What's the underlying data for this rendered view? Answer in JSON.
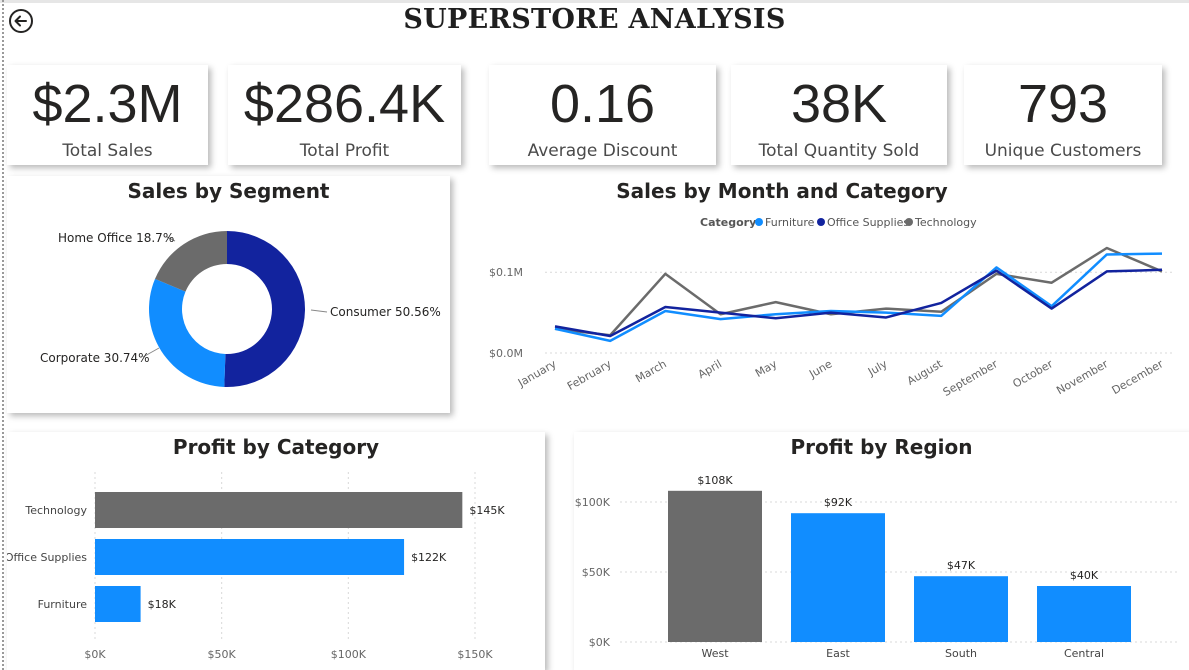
{
  "header": {
    "title": "SUPERSTORE ANALYSIS",
    "back_icon": "arrow-left-circle-icon"
  },
  "kpis": [
    {
      "value": "$2.3M",
      "label": "Total Sales"
    },
    {
      "value": "$286.4K",
      "label": "Total Profit"
    },
    {
      "value": "0.16",
      "label": "Average Discount"
    },
    {
      "value": "38K",
      "label": "Total Quantity Sold"
    },
    {
      "value": "793",
      "label": "Unique Customers"
    }
  ],
  "colors": {
    "dark_blue": "#12239E",
    "light_blue": "#118DFF",
    "gray": "#6B6B6B"
  },
  "chart_data": [
    {
      "type": "pie",
      "variant": "donut",
      "title": "Sales by Segment",
      "categories": [
        "Consumer",
        "Corporate",
        "Home Office"
      ],
      "values": [
        50.56,
        30.74,
        18.7
      ],
      "labels": [
        "Consumer 50.56%",
        "Corporate 30.74%",
        "Home Office 18.7%"
      ],
      "colors": [
        "#12239E",
        "#118DFF",
        "#6B6B6B"
      ]
    },
    {
      "type": "line",
      "title": "Sales by Month and Category",
      "legend_title": "Category",
      "legend_placement": "top-center",
      "categories": [
        "January",
        "February",
        "March",
        "April",
        "May",
        "June",
        "July",
        "August",
        "September",
        "October",
        "November",
        "December"
      ],
      "ylim": [
        0,
        0.13
      ],
      "yticks": [
        0,
        0.1
      ],
      "ytick_labels": [
        "$0.0M",
        "$0.1M"
      ],
      "series": [
        {
          "name": "Furniture",
          "color": "#118DFF",
          "values": [
            0.03,
            0.015,
            0.052,
            0.042,
            0.048,
            0.052,
            0.05,
            0.046,
            0.106,
            0.058,
            0.122,
            0.123
          ]
        },
        {
          "name": "Office Supplies",
          "color": "#12239E",
          "values": [
            0.033,
            0.021,
            0.057,
            0.05,
            0.043,
            0.05,
            0.044,
            0.062,
            0.102,
            0.055,
            0.101,
            0.103
          ]
        },
        {
          "name": "Technology",
          "color": "#6B6B6B",
          "values": [
            0.03,
            0.022,
            0.098,
            0.048,
            0.063,
            0.048,
            0.055,
            0.051,
            0.098,
            0.087,
            0.13,
            0.101
          ]
        }
      ]
    },
    {
      "type": "bar",
      "orientation": "horizontal",
      "title": "Profit by Category",
      "categories": [
        "Technology",
        "Office Supplies",
        "Furniture"
      ],
      "values": [
        145,
        122,
        18
      ],
      "data_labels": [
        "$145K",
        "$122K",
        "$18K"
      ],
      "colors": [
        "#6B6B6B",
        "#118DFF",
        "#118DFF"
      ],
      "xlim": [
        0,
        150
      ],
      "xticks": [
        0,
        50,
        100,
        150
      ],
      "xtick_labels": [
        "$0K",
        "$50K",
        "$100K",
        "$150K"
      ]
    },
    {
      "type": "bar",
      "orientation": "vertical",
      "title": "Profit by Region",
      "categories": [
        "West",
        "East",
        "South",
        "Central"
      ],
      "values": [
        108,
        92,
        47,
        40
      ],
      "data_labels": [
        "$108K",
        "$92K",
        "$47K",
        "$40K"
      ],
      "colors": [
        "#6B6B6B",
        "#118DFF",
        "#118DFF",
        "#118DFF"
      ],
      "ylim": [
        0,
        100
      ],
      "yticks": [
        0,
        50,
        100
      ],
      "ytick_labels": [
        "$0K",
        "$50K",
        "$100K"
      ]
    }
  ]
}
